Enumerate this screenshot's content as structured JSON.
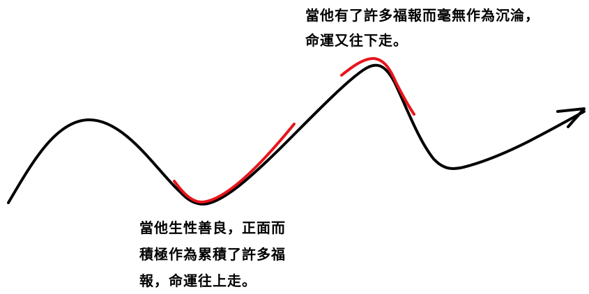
{
  "annotations": {
    "top": {
      "lines": [
        "當他有了許多福報而毫無作為沉淪，",
        "命運又往下走。"
      ]
    },
    "bottom": {
      "lines": [
        "當他生性善良，正面而",
        "積極作為累積了許多福",
        "報，命運往上走。"
      ]
    }
  },
  "colors": {
    "curve": "#000000",
    "highlight": "#e8141b",
    "background": "#ffffff"
  }
}
